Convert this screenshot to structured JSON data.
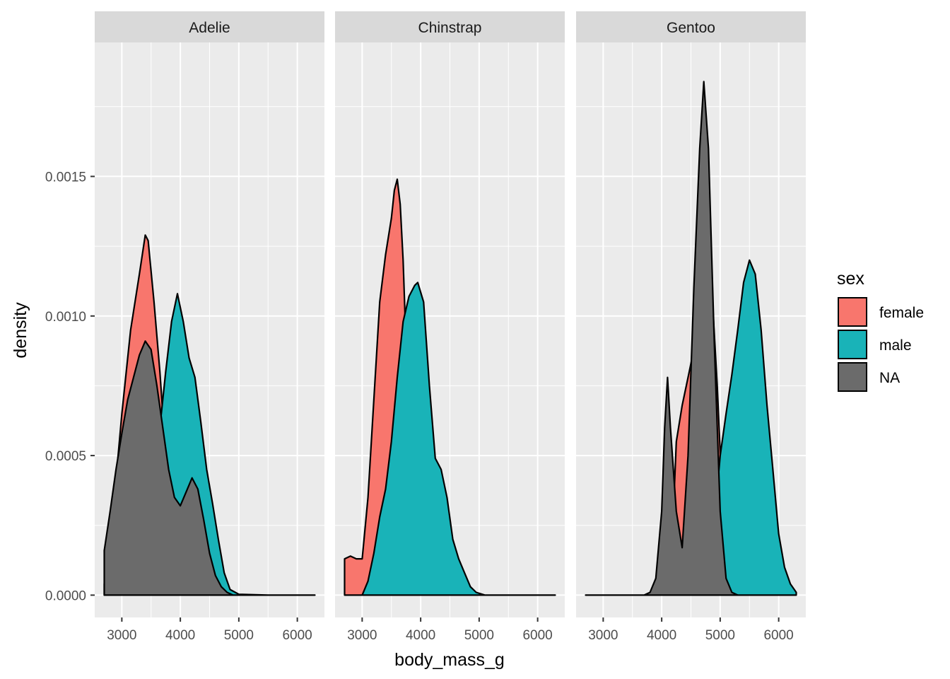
{
  "chart_data": {
    "type": "area",
    "subtype": "faceted density",
    "xlabel": "body_mass_g",
    "ylabel": "density",
    "xlim": [
      2700,
      6300
    ],
    "ylim": [
      -8e-05,
      0.00198
    ],
    "x_ticks": [
      3000,
      4000,
      5000,
      6000
    ],
    "x_tick_labels": [
      "3000",
      "4000",
      "5000",
      "6000"
    ],
    "y_ticks": [
      0.0,
      0.0005,
      0.001,
      0.0015
    ],
    "y_tick_labels": [
      "0.0000",
      "0.0005",
      "0.0010",
      "0.0015"
    ],
    "grid": true,
    "legend": {
      "title": "sex",
      "position": "right",
      "entries": [
        {
          "label": "female",
          "color": "#F8766D"
        },
        {
          "label": "male",
          "color": "#19B3B8"
        },
        {
          "label": "NA",
          "color": "#6B6B6B"
        }
      ]
    },
    "facets": [
      {
        "label": "Adelie",
        "series": [
          {
            "name": "female",
            "color": "#F8766D",
            "points": [
              [
                2700,
                4e-05
              ],
              [
                2850,
                0.0003
              ],
              [
                3000,
                0.00065
              ],
              [
                3150,
                0.00095
              ],
              [
                3300,
                0.00115
              ],
              [
                3400,
                0.00129
              ],
              [
                3450,
                0.00127
              ],
              [
                3550,
                0.00105
              ],
              [
                3650,
                0.0008
              ],
              [
                3750,
                0.0005
              ],
              [
                3850,
                0.00025
              ],
              [
                3950,
                0.0001
              ],
              [
                4050,
                3e-05
              ],
              [
                4200,
                1e-05
              ],
              [
                4300,
                0.0
              ]
            ]
          },
          {
            "name": "male",
            "color": "#19B3B8",
            "points": [
              [
                3300,
                0.0
              ],
              [
                3450,
                0.0002
              ],
              [
                3600,
                0.0005
              ],
              [
                3750,
                0.0008
              ],
              [
                3850,
                0.00098
              ],
              [
                3950,
                0.00108
              ],
              [
                4050,
                0.00098
              ],
              [
                4150,
                0.00085
              ],
              [
                4250,
                0.00078
              ],
              [
                4350,
                0.00062
              ],
              [
                4450,
                0.00045
              ],
              [
                4550,
                0.00033
              ],
              [
                4650,
                0.0002
              ],
              [
                4750,
                8e-05
              ],
              [
                4850,
                2e-05
              ],
              [
                5000,
                3e-06
              ],
              [
                5500,
                0.0
              ],
              [
                6300,
                0.0
              ]
            ]
          },
          {
            "name": "NA",
            "color": "#6B6B6B",
            "points": [
              [
                2700,
                0.00016
              ],
              [
                2800,
                0.0003
              ],
              [
                2900,
                0.00045
              ],
              [
                3000,
                0.00058
              ],
              [
                3100,
                0.0007
              ],
              [
                3200,
                0.00078
              ],
              [
                3300,
                0.00086
              ],
              [
                3400,
                0.00091
              ],
              [
                3500,
                0.00088
              ],
              [
                3600,
                0.00075
              ],
              [
                3700,
                0.0006
              ],
              [
                3800,
                0.00045
              ],
              [
                3900,
                0.00035
              ],
              [
                4000,
                0.00032
              ],
              [
                4100,
                0.00037
              ],
              [
                4200,
                0.00042
              ],
              [
                4300,
                0.00038
              ],
              [
                4400,
                0.00027
              ],
              [
                4500,
                0.00015
              ],
              [
                4600,
                7e-05
              ],
              [
                4700,
                3e-05
              ],
              [
                4800,
                1e-05
              ],
              [
                4900,
                0.0
              ]
            ]
          }
        ]
      },
      {
        "label": "Chinstrap",
        "series": [
          {
            "name": "female",
            "color": "#F8766D",
            "points": [
              [
                2700,
                0.00013
              ],
              [
                2800,
                0.00014
              ],
              [
                2900,
                0.00013
              ],
              [
                3000,
                0.00013
              ],
              [
                3100,
                0.00035
              ],
              [
                3200,
                0.0007
              ],
              [
                3300,
                0.00105
              ],
              [
                3400,
                0.00122
              ],
              [
                3500,
                0.00135
              ],
              [
                3550,
                0.00145
              ],
              [
                3600,
                0.00149
              ],
              [
                3650,
                0.0014
              ],
              [
                3700,
                0.0012
              ],
              [
                3750,
                0.0009
              ],
              [
                3800,
                0.0006
              ],
              [
                3900,
                0.0003
              ],
              [
                4000,
                0.00012
              ],
              [
                4100,
                4e-05
              ],
              [
                4200,
                1e-05
              ],
              [
                4300,
                0.0
              ]
            ]
          },
          {
            "name": "male",
            "color": "#19B3B8",
            "points": [
              [
                3000,
                0.0
              ],
              [
                3100,
                5e-05
              ],
              [
                3200,
                0.00015
              ],
              [
                3300,
                0.00028
              ],
              [
                3400,
                0.00038
              ],
              [
                3500,
                0.00055
              ],
              [
                3600,
                0.00078
              ],
              [
                3700,
                0.00098
              ],
              [
                3800,
                0.00107
              ],
              [
                3900,
                0.00111
              ],
              [
                3950,
                0.00112
              ],
              [
                4050,
                0.00105
              ],
              [
                4150,
                0.00075
              ],
              [
                4250,
                0.00049
              ],
              [
                4350,
                0.00045
              ],
              [
                4450,
                0.00035
              ],
              [
                4550,
                0.0002
              ],
              [
                4650,
                0.00013
              ],
              [
                4750,
                8e-05
              ],
              [
                4850,
                3e-05
              ],
              [
                4950,
                1e-05
              ],
              [
                5100,
                0.0
              ],
              [
                6300,
                0.0
              ]
            ]
          }
        ]
      },
      {
        "label": "Gentoo",
        "series": [
          {
            "name": "female",
            "color": "#F8766D",
            "points": [
              [
                4150,
                0.0
              ],
              [
                4200,
                0.0003
              ],
              [
                4250,
                0.00055
              ],
              [
                4350,
                0.00068
              ],
              [
                4450,
                0.00078
              ],
              [
                4550,
                0.00088
              ],
              [
                4650,
                0.00102
              ],
              [
                4750,
                0.00118
              ],
              [
                4850,
                0.00112
              ],
              [
                4950,
                0.00075
              ],
              [
                5050,
                0.00028
              ],
              [
                5150,
                5e-05
              ],
              [
                5250,
                0.0
              ]
            ]
          },
          {
            "name": "male",
            "color": "#19B3B8",
            "points": [
              [
                4700,
                0.0
              ],
              [
                4800,
                0.0001
              ],
              [
                4900,
                0.00026
              ],
              [
                5000,
                0.0005
              ],
              [
                5100,
                0.00065
              ],
              [
                5200,
                0.00079
              ],
              [
                5300,
                0.00095
              ],
              [
                5400,
                0.00112
              ],
              [
                5500,
                0.0012
              ],
              [
                5600,
                0.00115
              ],
              [
                5700,
                0.00095
              ],
              [
                5800,
                0.00068
              ],
              [
                5900,
                0.00045
              ],
              [
                6000,
                0.00022
              ],
              [
                6100,
                0.0001
              ],
              [
                6200,
                4e-05
              ],
              [
                6300,
                1e-05
              ]
            ]
          },
          {
            "name": "NA",
            "color": "#6B6B6B",
            "points": [
              [
                2700,
                0.0
              ],
              [
                3700,
                0.0
              ],
              [
                3800,
                1e-05
              ],
              [
                3900,
                6e-05
              ],
              [
                4000,
                0.0003
              ],
              [
                4050,
                0.0006
              ],
              [
                4100,
                0.00078
              ],
              [
                4150,
                0.0006
              ],
              [
                4250,
                0.0003
              ],
              [
                4350,
                0.00017
              ],
              [
                4450,
                0.0005
              ],
              [
                4550,
                0.0011
              ],
              [
                4650,
                0.0016
              ],
              [
                4720,
                0.00184
              ],
              [
                4800,
                0.0016
              ],
              [
                4900,
                0.0009
              ],
              [
                5000,
                0.0003
              ],
              [
                5100,
                6e-05
              ],
              [
                5200,
                1e-05
              ],
              [
                5300,
                0.0
              ]
            ]
          }
        ]
      }
    ]
  }
}
